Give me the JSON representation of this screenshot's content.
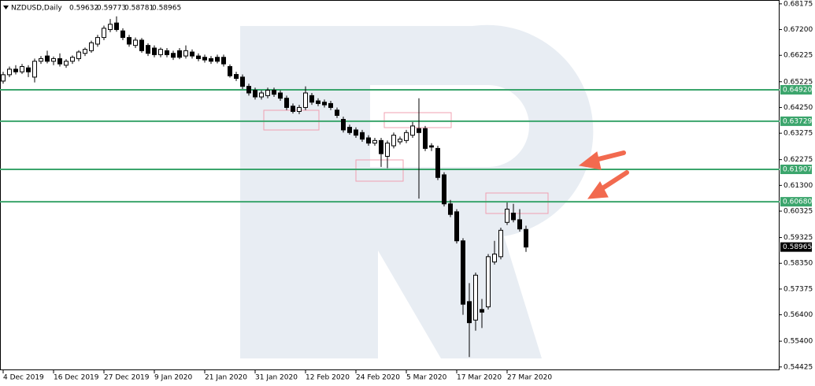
{
  "chart_data": {
    "type": "candlestick",
    "title": "NZDUSD,Daily",
    "categories": [
      "4 Dec 2019",
      null,
      null,
      null,
      null,
      null,
      null,
      null,
      "16 Dec 2019",
      null,
      null,
      null,
      null,
      null,
      null,
      null,
      "27 Dec 2019",
      null,
      null,
      null,
      null,
      null,
      null,
      null,
      "9 Jan 2020",
      null,
      null,
      null,
      null,
      null,
      null,
      null,
      "21 Jan 2020",
      null,
      null,
      null,
      null,
      null,
      null,
      null,
      "31 Jan 2020",
      null,
      null,
      null,
      null,
      null,
      null,
      null,
      "12 Feb 2020",
      null,
      null,
      null,
      null,
      null,
      null,
      null,
      "24 Feb 2020",
      null,
      null,
      null,
      null,
      null,
      null,
      null,
      "5 Mar 2020",
      null,
      null,
      null,
      null,
      null,
      null,
      null,
      "17 Mar 2020",
      null,
      null,
      null,
      null,
      null,
      null,
      null,
      "27 Mar 2020",
      null,
      null,
      null
    ],
    "ohlc": [
      [
        0.6525,
        0.656,
        0.6515,
        0.6549
      ],
      [
        0.6549,
        0.658,
        0.654,
        0.657
      ],
      [
        0.657,
        0.6585,
        0.655,
        0.656
      ],
      [
        0.656,
        0.659,
        0.6552,
        0.658
      ],
      [
        0.6575,
        0.6585,
        0.654,
        0.656
      ],
      [
        0.654,
        0.661,
        0.652,
        0.66
      ],
      [
        0.66,
        0.662,
        0.659,
        0.661
      ],
      [
        0.662,
        0.664,
        0.6592,
        0.66
      ],
      [
        0.66,
        0.6618,
        0.6585,
        0.661
      ],
      [
        0.661,
        0.663,
        0.658,
        0.659
      ],
      [
        0.6585,
        0.6608,
        0.6575,
        0.66
      ],
      [
        0.66,
        0.6622,
        0.659,
        0.6615
      ],
      [
        0.661,
        0.6642,
        0.66,
        0.6635
      ],
      [
        0.663,
        0.6652,
        0.662,
        0.6645
      ],
      [
        0.664,
        0.6678,
        0.6632,
        0.667
      ],
      [
        0.6665,
        0.67,
        0.6655,
        0.669
      ],
      [
        0.669,
        0.6735,
        0.668,
        0.6725
      ],
      [
        0.672,
        0.676,
        0.671,
        0.674
      ],
      [
        0.6745,
        0.677,
        0.6712,
        0.672
      ],
      [
        0.6715,
        0.6725,
        0.668,
        0.669
      ],
      [
        0.669,
        0.67,
        0.6655,
        0.6665
      ],
      [
        0.666,
        0.669,
        0.665,
        0.668
      ],
      [
        0.668,
        0.6688,
        0.6632,
        0.664
      ],
      [
        0.666,
        0.6668,
        0.662,
        0.663
      ],
      [
        0.665,
        0.666,
        0.6615,
        0.6625
      ],
      [
        0.6625,
        0.6652,
        0.6615,
        0.6645
      ],
      [
        0.664,
        0.665,
        0.6615,
        0.6625
      ],
      [
        0.663,
        0.664,
        0.6605,
        0.6615
      ],
      [
        0.664,
        0.665,
        0.6608,
        0.6615
      ],
      [
        0.662,
        0.666,
        0.661,
        0.664
      ],
      [
        0.6635,
        0.6645,
        0.661,
        0.662
      ],
      [
        0.662,
        0.663,
        0.66,
        0.661
      ],
      [
        0.6615,
        0.6625,
        0.6595,
        0.6605
      ],
      [
        0.661,
        0.662,
        0.659,
        0.66
      ],
      [
        0.6615,
        0.6625,
        0.6592,
        0.66
      ],
      [
        0.6615,
        0.6625,
        0.658,
        0.659
      ],
      [
        0.658,
        0.6588,
        0.6538,
        0.6545
      ],
      [
        0.655,
        0.656,
        0.6525,
        0.6535
      ],
      [
        0.654,
        0.655,
        0.6495,
        0.6505
      ],
      [
        0.6505,
        0.6515,
        0.647,
        0.648
      ],
      [
        0.649,
        0.65,
        0.6455,
        0.6465
      ],
      [
        0.6465,
        0.649,
        0.6455,
        0.648
      ],
      [
        0.647,
        0.65,
        0.646,
        0.649
      ],
      [
        0.649,
        0.65,
        0.6465,
        0.6475
      ],
      [
        0.648,
        0.649,
        0.645,
        0.646
      ],
      [
        0.646,
        0.647,
        0.6415,
        0.6425
      ],
      [
        0.643,
        0.644,
        0.6402,
        0.641
      ],
      [
        0.641,
        0.6435,
        0.64,
        0.6425
      ],
      [
        0.6425,
        0.6505,
        0.6415,
        0.648
      ],
      [
        0.647,
        0.648,
        0.6435,
        0.6445
      ],
      [
        0.645,
        0.646,
        0.643,
        0.644
      ],
      [
        0.6445,
        0.6455,
        0.6425,
        0.6435
      ],
      [
        0.644,
        0.645,
        0.6415,
        0.6425
      ],
      [
        0.6415,
        0.6425,
        0.6385,
        0.6395
      ],
      [
        0.638,
        0.639,
        0.633,
        0.634
      ],
      [
        0.635,
        0.636,
        0.6322,
        0.633
      ],
      [
        0.634,
        0.635,
        0.631,
        0.632
      ],
      [
        0.633,
        0.634,
        0.6295,
        0.6305
      ],
      [
        0.631,
        0.632,
        0.628,
        0.629
      ],
      [
        0.629,
        0.631,
        0.628,
        0.63
      ],
      [
        0.63,
        0.631,
        0.62,
        0.625
      ],
      [
        0.624,
        0.63,
        0.6195,
        0.629
      ],
      [
        0.628,
        0.633,
        0.627,
        0.632
      ],
      [
        0.6295,
        0.6315,
        0.6285,
        0.6305
      ],
      [
        0.63,
        0.634,
        0.629,
        0.633
      ],
      [
        0.632,
        0.637,
        0.631,
        0.6355
      ],
      [
        0.6345,
        0.646,
        0.608,
        0.633
      ],
      [
        0.6345,
        0.6355,
        0.626,
        0.627
      ],
      [
        0.628,
        0.629,
        0.626,
        0.6275
      ],
      [
        0.627,
        0.628,
        0.615,
        0.616
      ],
      [
        0.617,
        0.618,
        0.605,
        0.606
      ],
      [
        0.606,
        0.6075,
        0.601,
        0.602
      ],
      [
        0.603,
        0.604,
        0.591,
        0.592
      ],
      [
        0.592,
        0.593,
        0.564,
        0.568
      ],
      [
        0.569,
        0.576,
        0.548,
        0.561
      ],
      [
        0.562,
        0.58,
        0.558,
        0.579
      ],
      [
        0.566,
        0.57,
        0.559,
        0.565
      ],
      [
        0.567,
        0.587,
        0.566,
        0.586
      ],
      [
        0.584,
        0.592,
        0.583,
        0.587
      ],
      [
        0.586,
        0.597,
        0.585,
        0.596
      ],
      [
        0.599,
        0.6065,
        0.598,
        0.604
      ],
      [
        0.6025,
        0.606,
        0.599,
        0.6
      ],
      [
        0.6,
        0.604,
        0.5955,
        0.5965
      ],
      [
        0.59632,
        0.59773,
        0.58781,
        0.58965
      ]
    ],
    "ylim": [
      0.543,
      0.6832
    ],
    "yticks": [
      0.68175,
      {
        "value": 0.672,
        "label": "0.67200"
      },
      0.66225,
      0.65225,
      {
        "value": 0.6425,
        "label": "0.64250"
      },
      0.63275,
      0.62275,
      {
        "value": 0.613,
        "label": "0.61300"
      },
      0.60325,
      0.59325,
      {
        "value": 0.5835,
        "label": "0.58350"
      },
      0.57375,
      {
        "value": 0.564,
        "label": "0.56400"
      },
      {
        "value": 0.554,
        "label": "0.55400"
      },
      0.54425
    ],
    "levels": [
      {
        "value": 0.6492,
        "label": "0.64920"
      },
      {
        "value": 0.63729,
        "label": "0.63729"
      },
      {
        "value": 0.61907,
        "label": "0.61907"
      },
      {
        "value": 0.6068,
        "label": "0.60680"
      }
    ],
    "level_color": "#3ba56c",
    "current_price": 0.58965,
    "bull_color": "#ffffff",
    "bear_color": "#000000"
  }
}
